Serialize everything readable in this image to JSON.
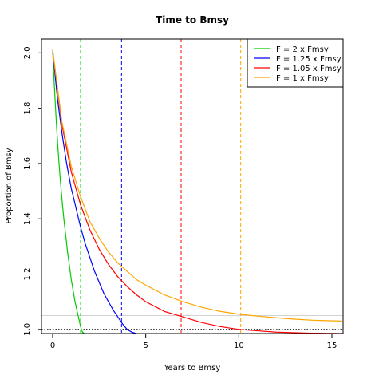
{
  "chart_data": {
    "type": "line",
    "title": "Time to Bmsy",
    "xlabel": "Years to Bmsy",
    "ylabel": "Proportion of Bmsy",
    "xlim": [
      -0.6,
      15.6
    ],
    "ylim": [
      0.985,
      2.05
    ],
    "x_ticks": [
      0,
      5,
      10,
      15
    ],
    "y_ticks": [
      1.0,
      1.2,
      1.4,
      1.6,
      1.8,
      2.0
    ],
    "x_tick_labels": [
      "0",
      "5",
      "10",
      "15"
    ],
    "y_tick_labels": [
      "1.0",
      "1.2",
      "1.4",
      "1.6",
      "1.8",
      "2.0"
    ],
    "legend_position": "top-right",
    "grid": false,
    "series": [
      {
        "name": "F = 2 x Fmsy",
        "color": "#00cc00",
        "x": [
          0,
          0.1,
          0.2,
          0.3,
          0.4,
          0.5,
          0.6,
          0.7,
          0.8,
          0.9,
          1.0,
          1.1,
          1.2,
          1.3,
          1.4,
          1.5,
          1.6,
          1.7
        ],
        "y": [
          2.01,
          1.87,
          1.745,
          1.64,
          1.55,
          1.47,
          1.4,
          1.34,
          1.28,
          1.23,
          1.18,
          1.14,
          1.1,
          1.07,
          1.04,
          1.01,
          0.99,
          0.985
        ],
        "time_marker": 1.5
      },
      {
        "name": "F = 1.25 x Fmsy",
        "color": "#0000ff",
        "x": [
          0,
          0.25,
          0.5,
          0.75,
          1.0,
          1.25,
          1.5,
          1.75,
          2.0,
          2.25,
          2.5,
          2.75,
          3.0,
          3.25,
          3.5,
          3.75,
          4.0,
          4.25,
          4.5
        ],
        "y": [
          2.01,
          1.84,
          1.71,
          1.6,
          1.51,
          1.44,
          1.37,
          1.31,
          1.26,
          1.21,
          1.17,
          1.13,
          1.1,
          1.07,
          1.045,
          1.02,
          1.0,
          0.99,
          0.985
        ],
        "time_marker": 3.7
      },
      {
        "name": "F = 1.05 x Fmsy",
        "color": "#ff0000",
        "x": [
          0,
          0.5,
          1.0,
          1.5,
          2.0,
          2.5,
          3.0,
          3.5,
          4.0,
          4.5,
          5.0,
          6.0,
          7.0,
          8.0,
          9.0,
          10.0,
          11.0,
          12.0,
          13.0,
          14.0,
          15.5
        ],
        "y": [
          2.01,
          1.74,
          1.57,
          1.45,
          1.36,
          1.29,
          1.235,
          1.19,
          1.155,
          1.125,
          1.1,
          1.065,
          1.045,
          1.025,
          1.01,
          1.0,
          0.995,
          0.99,
          0.988,
          0.986,
          0.985
        ],
        "time_marker": 6.9
      },
      {
        "name": "F = 1 x Fmsy",
        "color": "#ffa500",
        "x": [
          0,
          0.5,
          1.0,
          1.5,
          2.0,
          2.5,
          3.0,
          3.5,
          4.0,
          4.5,
          5.0,
          6.0,
          7.0,
          8.0,
          9.0,
          10.0,
          11.0,
          12.0,
          13.0,
          14.0,
          15.5
        ],
        "y": [
          2.01,
          1.75,
          1.59,
          1.48,
          1.39,
          1.33,
          1.28,
          1.24,
          1.21,
          1.18,
          1.16,
          1.125,
          1.1,
          1.08,
          1.065,
          1.055,
          1.048,
          1.042,
          1.037,
          1.033,
          1.03
        ],
        "time_marker": 10.1
      }
    ],
    "reference_lines": {
      "bmsy_level": 1.0,
      "threshold_level": 1.05
    }
  }
}
